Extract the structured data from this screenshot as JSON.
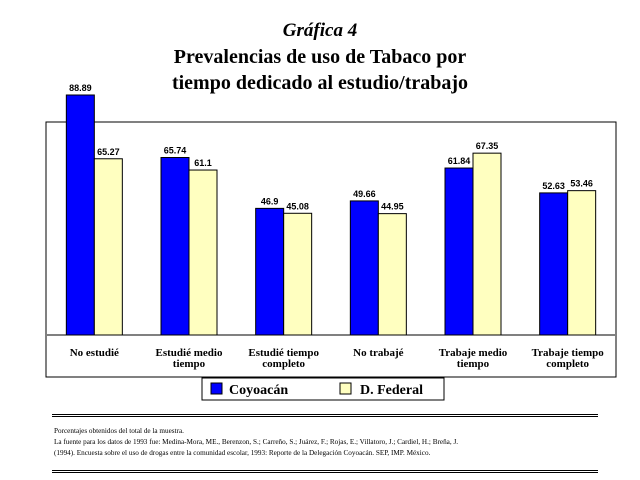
{
  "header": {
    "figure_label": "Gráfica 4",
    "title_line1": "Prevalencias de uso de Tabaco por",
    "title_line2": "tiempo dedicado al estudio/trabajo"
  },
  "colors": {
    "coyoacan": "#0000FF",
    "federal": "#FFFFC0",
    "stroke": "#000000"
  },
  "chart_data": {
    "type": "bar",
    "categories": [
      "No estudié",
      "Estudié medio tiempo",
      "Estudié tiempo completo",
      "No trabajé",
      "Trabaje medio tiempo",
      "Trabaje tiempo completo"
    ],
    "category_label_lines": [
      [
        "No estudié"
      ],
      [
        "Estudié medio",
        "tiempo"
      ],
      [
        "Estudié tiempo",
        "completo"
      ],
      [
        "No trabajé"
      ],
      [
        "Trabaje medio",
        "tiempo"
      ],
      [
        "Trabaje tiempo",
        "completo"
      ]
    ],
    "series": [
      {
        "name": "Coyoacán",
        "values": [
          88.89,
          65.74,
          46.9,
          49.66,
          61.84,
          52.63
        ],
        "labels": [
          "88.89",
          "65.74",
          "46.9",
          "49.66",
          "61.84",
          "52.63"
        ]
      },
      {
        "name": "D. Federal",
        "values": [
          65.27,
          61.1,
          45.08,
          44.95,
          67.35,
          53.46
        ],
        "labels": [
          "65.27",
          "61.1",
          "45.08",
          "44.95",
          "67.35",
          "53.46"
        ]
      }
    ],
    "ylim": [
      0,
      100
    ],
    "grid": false,
    "legend_position": "bottom"
  },
  "notes": [
    "Porcentajes obtenidos del total de la muestra.",
    "La fuente para los datos de 1993 fue: Medina-Mora, ME., Berenzon, S.; Carreño, S.; Juárez, F.; Rojas, E.; Villatoro, J.; Cardiel, H.; Breña, J.",
    "(1994). Encuesta sobre el uso de drogas entre la comunidad escolar, 1993: Reporte de la Delegación Coyoacán. SEP, IMP. México."
  ]
}
